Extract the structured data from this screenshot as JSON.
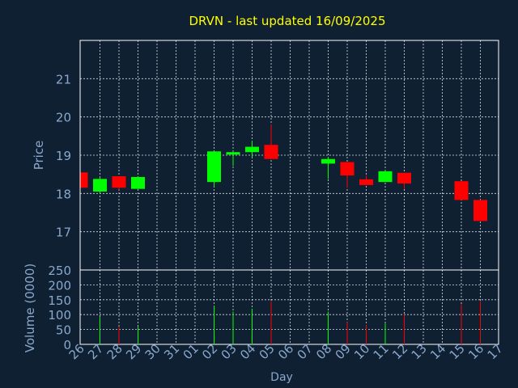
{
  "chart_data": {
    "type": "candlestick",
    "title": "DRVN - last updated 16/09/2025",
    "price_panel": {
      "ylabel": "Price",
      "ylim": [
        16,
        22
      ],
      "yticks": [
        17,
        18,
        19,
        20,
        21
      ],
      "grid": true
    },
    "volume_panel": {
      "ylabel": "Volume (0000)",
      "ylim": [
        0,
        250
      ],
      "yticks": [
        0,
        50,
        100,
        150,
        200,
        250
      ],
      "grid": true
    },
    "xlabel": "Day",
    "x_ticks": [
      "26",
      "27",
      "28",
      "29",
      "30",
      "31",
      "01",
      "02",
      "03",
      "04",
      "05",
      "06",
      "07",
      "08",
      "09",
      "10",
      "11",
      "12",
      "13",
      "14",
      "15",
      "16",
      "17"
    ],
    "colors": {
      "up": "#00ff00",
      "down": "#ff0000",
      "background": "#0f2033",
      "title": "#ffff00",
      "text": "#8aa8cc",
      "grid": "#ffffff"
    },
    "candles": [
      {
        "day": "26",
        "open": 18.55,
        "high": 18.55,
        "low": 18.15,
        "close": 18.15,
        "volume": 0
      },
      {
        "day": "27",
        "open": 18.05,
        "high": 18.42,
        "low": 18.0,
        "close": 18.38,
        "volume": 92
      },
      {
        "day": "28",
        "open": 18.45,
        "high": 18.45,
        "low": 18.1,
        "close": 18.15,
        "volume": 60
      },
      {
        "day": "29",
        "open": 18.12,
        "high": 18.45,
        "low": 18.12,
        "close": 18.43,
        "volume": 60
      },
      {
        "day": "02",
        "open": 18.3,
        "high": 19.1,
        "low": 18.18,
        "close": 19.1,
        "volume": 130
      },
      {
        "day": "03",
        "open": 19.03,
        "high": 19.1,
        "low": 18.72,
        "close": 19.08,
        "volume": 110
      },
      {
        "day": "04",
        "open": 19.08,
        "high": 19.38,
        "low": 18.95,
        "close": 19.22,
        "volume": 120
      },
      {
        "day": "05",
        "open": 19.27,
        "high": 19.8,
        "low": 18.9,
        "close": 18.9,
        "volume": 145
      },
      {
        "day": "08",
        "open": 18.78,
        "high": 18.95,
        "low": 18.38,
        "close": 18.9,
        "volume": 110
      },
      {
        "day": "09",
        "open": 18.82,
        "high": 18.82,
        "low": 18.15,
        "close": 18.47,
        "volume": 75
      },
      {
        "day": "10",
        "open": 18.37,
        "high": 18.47,
        "low": 18.22,
        "close": 18.22,
        "volume": 65
      },
      {
        "day": "11",
        "open": 18.3,
        "high": 18.6,
        "low": 18.3,
        "close": 18.58,
        "volume": 70
      },
      {
        "day": "12",
        "open": 18.54,
        "high": 18.54,
        "low": 18.12,
        "close": 18.26,
        "volume": 100
      },
      {
        "day": "15",
        "open": 18.32,
        "high": 18.32,
        "low": 17.83,
        "close": 17.83,
        "volume": 135
      },
      {
        "day": "16",
        "open": 17.83,
        "high": 17.83,
        "low": 17.28,
        "close": 17.28,
        "volume": 145
      }
    ]
  }
}
